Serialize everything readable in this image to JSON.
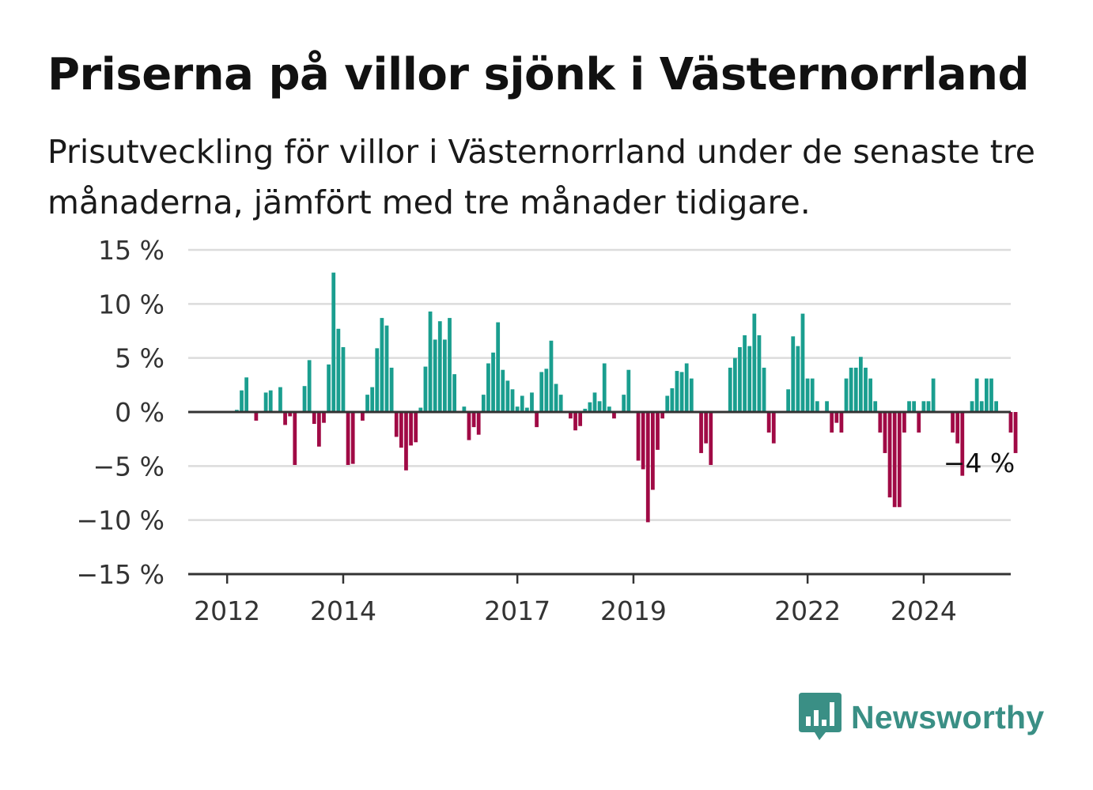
{
  "header": {
    "title": "Priserna på villor sjönk i Västernorrland",
    "subtitle": "Prisutveckling för villor i Västernorrland under de senaste tre månaderna, jämfört med tre månader tidigare."
  },
  "brand": {
    "name": "Newsworthy",
    "logo_icon": "newsworthy-chart-bubble-icon"
  },
  "colors": {
    "positive": "#1a9e8f",
    "negative": "#a00a45",
    "grid": "#dcdcdc",
    "axis": "#333333",
    "brand": "#3a8f85"
  },
  "chart_data": {
    "type": "bar",
    "title": "Priserna på villor sjönk i Västernorrland",
    "xlabel": "",
    "ylabel": "",
    "ylim": [
      -15,
      15
    ],
    "yticks": [
      15,
      10,
      5,
      0,
      -5,
      -10,
      -15
    ],
    "ytick_labels": [
      "15 %",
      "10 %",
      "5 %",
      "0 %",
      "−5 %",
      "−10 %",
      "−15 %"
    ],
    "xticks": [
      2012,
      2014,
      2017,
      2019,
      2022,
      2024
    ],
    "xtick_labels": [
      "2012",
      "2014",
      "2017",
      "2019",
      "2022",
      "2024"
    ],
    "xlim": [
      2011.33,
      2025.5
    ],
    "grid": true,
    "start": 2011.6667,
    "step": 0.08333,
    "values": [
      0,
      0,
      0,
      0,
      0,
      0,
      0.2,
      2,
      3.2,
      0,
      -0.8,
      0,
      1.8,
      2,
      0,
      2.3,
      -1.2,
      -0.4,
      -4.9,
      0,
      2.4,
      4.8,
      -1.1,
      -3.2,
      -1,
      4.4,
      12.9,
      7.7,
      6,
      -4.9,
      -4.8,
      0,
      -0.8,
      1.6,
      2.3,
      5.9,
      8.7,
      8,
      4.1,
      -2.3,
      -3.3,
      -5.4,
      -3.1,
      -2.8,
      0.4,
      4.2,
      9.3,
      6.7,
      8.4,
      6.7,
      8.7,
      3.5,
      0,
      0.5,
      -2.6,
      -1.4,
      -2.1,
      1.6,
      4.5,
      5.5,
      8.3,
      3.9,
      2.9,
      2.1,
      0.5,
      1.5,
      0.4,
      1.8,
      -1.4,
      3.7,
      4,
      6.6,
      2.6,
      1.6,
      0,
      -0.6,
      -1.7,
      -1.3,
      0.3,
      0.9,
      1.8,
      1,
      4.5,
      0.5,
      -0.6,
      0,
      1.6,
      3.9,
      0,
      -4.5,
      -5.3,
      -10.2,
      -7.2,
      -3.5,
      -0.6,
      1.5,
      2.2,
      3.8,
      3.7,
      4.5,
      3.1,
      0,
      -3.8,
      -2.9,
      -4.9,
      0,
      0,
      0,
      4.1,
      5,
      6,
      7.1,
      6.1,
      9.1,
      7.1,
      4.1,
      -1.9,
      -2.9,
      0,
      0,
      2.1,
      7,
      6.1,
      9.1,
      3.1,
      3.1,
      1,
      0,
      1,
      -1.9,
      -1,
      -1.9,
      3.1,
      4.1,
      4.1,
      5.1,
      4.1,
      3.1,
      1,
      -1.9,
      -3.8,
      -7.9,
      -8.8,
      -8.8,
      -1.9,
      1,
      1,
      -1.9,
      1,
      1,
      3.1,
      0,
      0,
      0,
      -1.9,
      -2.9,
      -5.9,
      0,
      1,
      3.1,
      1,
      3.1,
      3.1,
      1,
      0,
      0,
      -1.9,
      -3.8
    ],
    "annotations": [
      {
        "text": "−4 %",
        "x": 2025.0,
        "y": -3.8
      }
    ]
  }
}
